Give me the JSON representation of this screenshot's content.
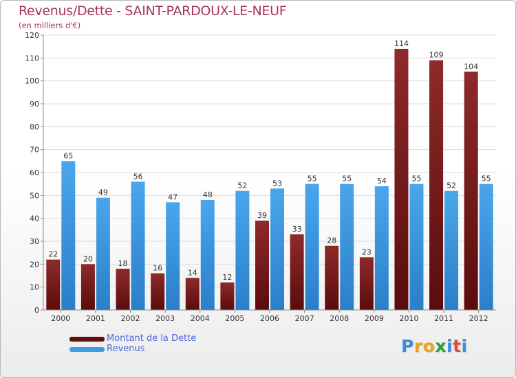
{
  "header": {
    "title": "Revenus/Dette - SAINT-PARDOUX-LE-NEUF",
    "subtitle": "(en milliers d'€)"
  },
  "colors": {
    "dette": "#7a1c1c",
    "revenus": "#3f9be2",
    "title": "#a8355a",
    "legend_text": "#4a66d6"
  },
  "legend": {
    "items": [
      {
        "label": "Montant de la Dette",
        "color": "#7a1c1c"
      },
      {
        "label": "Revenus",
        "color": "#3f9be2"
      }
    ]
  },
  "logo": {
    "text": "Proxiti",
    "letter_colors": [
      "#3b8fd8",
      "#e8a21c",
      "#e8a21c",
      "#2f9c3c",
      "#3b8fd8",
      "#e04a3c",
      "#3b8fd8"
    ]
  },
  "chart_data": {
    "type": "bar",
    "categories": [
      "2000",
      "2001",
      "2002",
      "2003",
      "2004",
      "2005",
      "2006",
      "2007",
      "2008",
      "2009",
      "2010",
      "2011",
      "2012"
    ],
    "series": [
      {
        "name": "Montant de la Dette",
        "values": [
          22,
          20,
          18,
          16,
          14,
          12,
          39,
          33,
          28,
          23,
          114,
          109,
          104
        ]
      },
      {
        "name": "Revenus",
        "values": [
          65,
          49,
          56,
          47,
          48,
          52,
          53,
          55,
          55,
          54,
          55,
          52,
          55
        ]
      }
    ],
    "ylim": [
      0,
      120
    ],
    "yticks": [
      0,
      10,
      20,
      30,
      40,
      50,
      60,
      70,
      80,
      90,
      100,
      110,
      120
    ],
    "grid": true,
    "legend_position": "bottom-left"
  }
}
